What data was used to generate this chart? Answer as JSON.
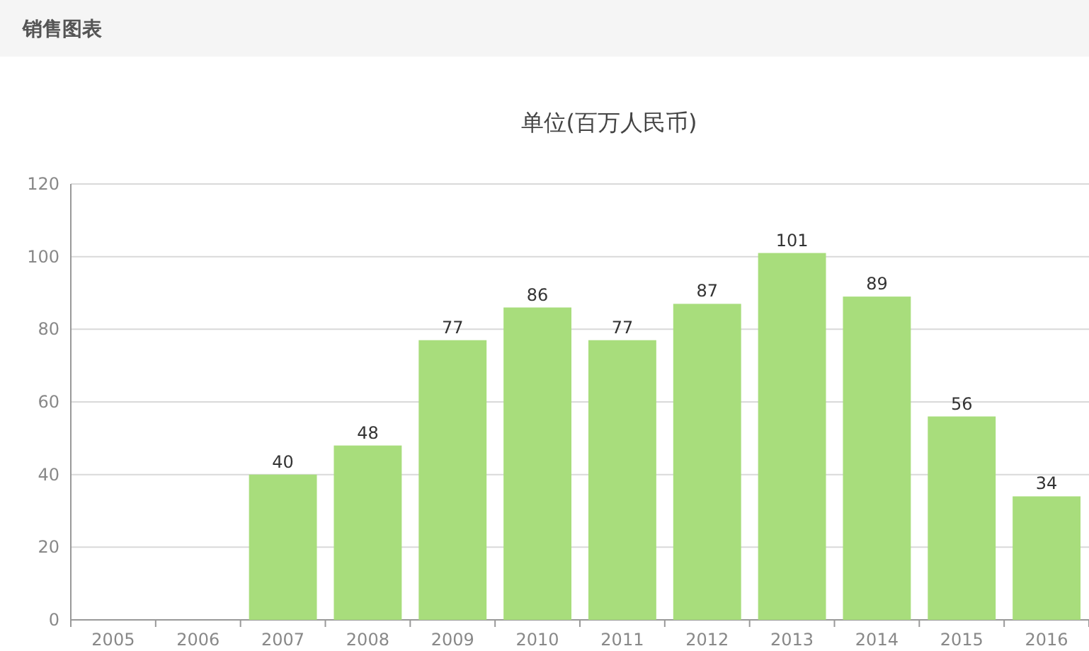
{
  "chart_data": {
    "type": "bar",
    "title": "销售图表",
    "subtitle": "单位(百万人民币)",
    "categories": [
      "2005",
      "2006",
      "2007",
      "2008",
      "2009",
      "2010",
      "2011",
      "2012",
      "2013",
      "2014",
      "2015",
      "2016"
    ],
    "values": [
      null,
      null,
      40,
      48,
      77,
      86,
      77,
      87,
      101,
      89,
      56,
      34
    ],
    "color": "#a8dd7c",
    "ylim": [
      0,
      120
    ],
    "yticks": [
      0,
      20,
      40,
      60,
      80,
      100,
      120
    ],
    "grid": "y",
    "data_labels": true
  }
}
